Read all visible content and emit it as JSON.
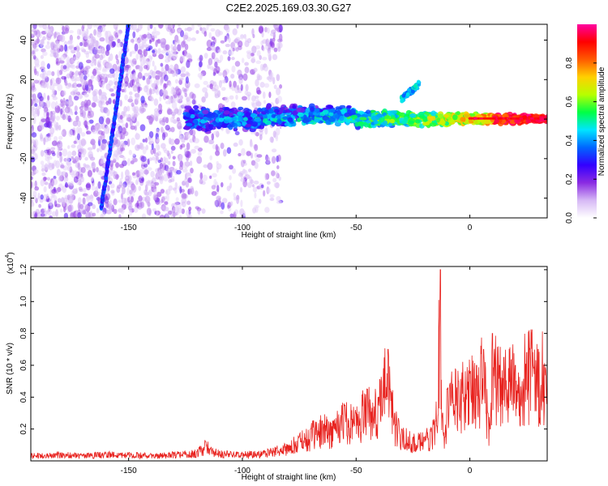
{
  "title": "C2E2.2025.169.03.30.G27",
  "colors": {
    "snr_line": "#e8231f",
    "frame": "#000000",
    "background": "#ffffff"
  },
  "chart_data": [
    {
      "type": "heatmap",
      "xlabel": "Height of straight line (km)",
      "ylabel": "Frequency (Hz)",
      "xlim": [
        -193,
        34
      ],
      "ylim": [
        -50,
        48
      ],
      "xticks": [
        -150,
        -100,
        -50,
        0
      ],
      "xtick_labels": [
        "-150",
        "-100",
        "-50",
        "0"
      ],
      "yticks": [
        -40,
        -20,
        0,
        20,
        40
      ],
      "ytick_labels": [
        "-40",
        "-20",
        "0",
        "20",
        "40"
      ],
      "colorbar": {
        "label": "Normalized spectral amplitude",
        "range": [
          0,
          1
        ],
        "ticks": [
          0.0,
          0.2,
          0.4,
          0.6,
          0.8
        ],
        "tick_labels": [
          "0.0",
          "0.2",
          "0.4",
          "0.6",
          "0.8"
        ],
        "colormap": [
          "#ffffff",
          "#d6b8f5",
          "#8a2be2",
          "#3300ff",
          "#0066ff",
          "#00e5ff",
          "#00ff44",
          "#b7ff00",
          "#ffd000",
          "#ff5a00",
          "#ff0000",
          "#ff00a0"
        ]
      },
      "features": [
        {
          "name": "diagonal streak",
          "x": [
            -162,
            -150
          ],
          "y": [
            -45,
            48
          ],
          "amplitude": 0.25
        },
        {
          "name": "main band",
          "x": [
            -125,
            34
          ],
          "y_center": 0,
          "amplitude_range": [
            0.25,
            1.0
          ]
        },
        {
          "name": "upper feature",
          "x": [
            -30,
            -22
          ],
          "y": [
            10,
            18
          ],
          "amplitude": 0.35
        }
      ]
    },
    {
      "type": "line",
      "xlabel": "Height of straight line (km)",
      "ylabel": "SNR (10 * v/v)",
      "y_multiplier": "(x10",
      "y_multiplier_exp": "4",
      "y_multiplier_close": ")",
      "xlim": [
        -193,
        34
      ],
      "ylim": [
        0,
        1.22
      ],
      "xticks": [
        -150,
        -100,
        -50,
        0
      ],
      "xtick_labels": [
        "-150",
        "-100",
        "-50",
        "0"
      ],
      "yticks": [
        0.2,
        0.4,
        0.6,
        0.8,
        1.0,
        1.2
      ],
      "ytick_labels": [
        "0.2",
        "0.4",
        "0.6",
        "0.8",
        "1.0",
        "1.2"
      ],
      "series": [
        {
          "x": [
            -193,
            -180,
            -170,
            -160,
            -150,
            -140,
            -130,
            -120,
            -116,
            -114,
            -110,
            -100,
            -90,
            -85,
            -80,
            -75,
            -70,
            -65,
            -60,
            -55,
            -50,
            -45,
            -40,
            -36,
            -35,
            -33,
            -30,
            -25,
            -20,
            -15,
            -13,
            -12,
            -11,
            -10,
            -5,
            0,
            3,
            6,
            8,
            9,
            10,
            13,
            15,
            20,
            25,
            30,
            34
          ],
          "y": [
            0.04,
            0.05,
            0.04,
            0.05,
            0.05,
            0.04,
            0.05,
            0.06,
            0.12,
            0.08,
            0.06,
            0.05,
            0.06,
            0.08,
            0.1,
            0.15,
            0.2,
            0.25,
            0.25,
            0.35,
            0.3,
            0.45,
            0.4,
            0.7,
            0.45,
            0.3,
            0.2,
            0.15,
            0.15,
            0.25,
            1.2,
            0.3,
            0.15,
            0.45,
            0.5,
            0.55,
            0.6,
            0.7,
            0.3,
            0.2,
            0.8,
            0.6,
            0.65,
            0.6,
            0.68,
            0.7,
            0.72
          ]
        }
      ]
    }
  ]
}
